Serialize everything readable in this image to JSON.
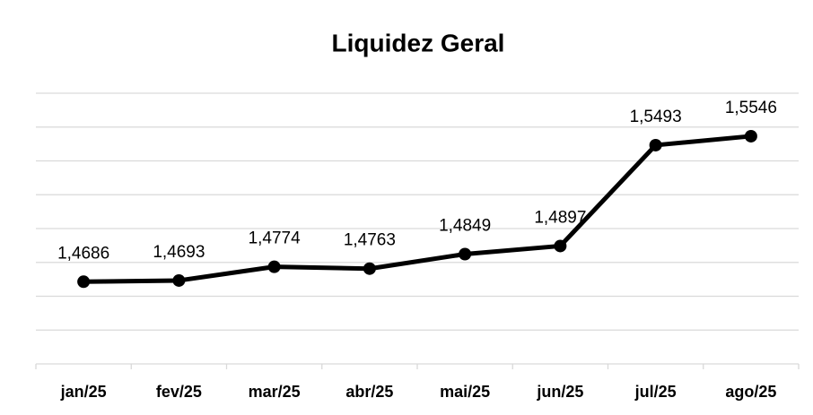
{
  "chart_data": {
    "type": "line",
    "title": "Liquidez Geral",
    "categories": [
      "jan/25",
      "fev/25",
      "mar/25",
      "abr/25",
      "mai/25",
      "jun/25",
      "jul/25",
      "ago/25"
    ],
    "series": [
      {
        "name": "Liquidez Geral",
        "color": "#000000",
        "values": [
          1.4686,
          1.4693,
          1.4774,
          1.4763,
          1.4849,
          1.4897,
          1.5493,
          1.5546
        ],
        "value_labels": [
          "1,4686",
          "1,4693",
          "1,4774",
          "1,4763",
          "1,4849",
          "1,4897",
          "1,5493",
          "1,5546"
        ]
      }
    ],
    "ylim": [
      1.42,
      1.58
    ],
    "yticks": [
      1.42,
      1.44,
      1.46,
      1.48,
      1.5,
      1.52,
      1.54,
      1.56,
      1.58
    ],
    "grid": true
  }
}
